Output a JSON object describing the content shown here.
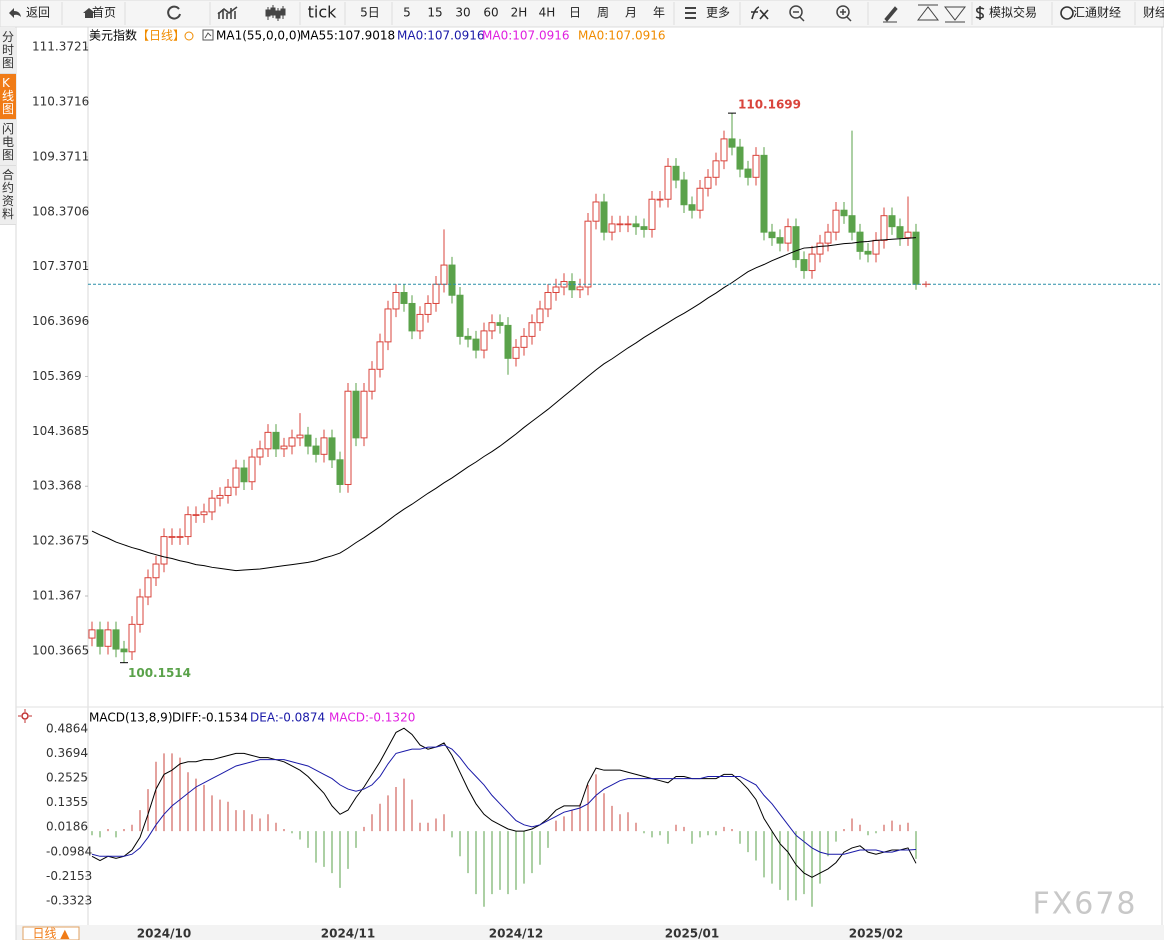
{
  "toolbar": [
    "返回",
    "首页",
    "tick",
    "5日",
    "5",
    "15",
    "30",
    "60",
    "2H",
    "4H",
    "日",
    "周",
    "月",
    "年",
    "更多",
    "模拟交易",
    "汇通财经",
    "财经"
  ],
  "sidebar": [
    "分时图",
    "K线图",
    "闪电图",
    "合约资料"
  ],
  "period_button": "日线 ▲",
  "watermark": "FX678",
  "chart_data": [
    {
      "type": "candlestick",
      "title": "美元指数",
      "period": "【日线】",
      "legend": [
        {
          "text": "MA1(55,0,0,0)",
          "color": "#000000"
        },
        {
          "text": "MA55:107.9018",
          "color": "#000000"
        },
        {
          "text": "MA0:107.0916",
          "color": "#1a1aa8"
        },
        {
          "text": "MA0:107.0916",
          "color": "#e020e0"
        },
        {
          "text": "MA0:107.0916",
          "color": "#f08c00"
        }
      ],
      "up_color": "#d9443c",
      "down_color": "#5aa24a",
      "categories": [
        null,
        null,
        null,
        null,
        null,
        null,
        null,
        null,
        null,
        "2024/10",
        null,
        null,
        null,
        null,
        null,
        null,
        null,
        null,
        null,
        null,
        null,
        null,
        null,
        null,
        null,
        null,
        null,
        null,
        null,
        null,
        null,
        null,
        "2024/11",
        null,
        null,
        null,
        null,
        null,
        null,
        null,
        null,
        null,
        null,
        null,
        null,
        null,
        null,
        null,
        null,
        null,
        null,
        null,
        null,
        "2024/12",
        null,
        null,
        null,
        null,
        null,
        null,
        null,
        null,
        null,
        null,
        null,
        null,
        null,
        null,
        null,
        null,
        null,
        null,
        null,
        null,
        null,
        "2025/01",
        null,
        null,
        null,
        null,
        null,
        null,
        null,
        null,
        null,
        null,
        null,
        null,
        null,
        null,
        null,
        null,
        null,
        null,
        null,
        null,
        null,
        null,
        "2025/02",
        null,
        null,
        null,
        null,
        null
      ],
      "open": [
        100.6,
        100.75,
        100.45,
        100.75,
        100.4,
        100.35,
        100.85,
        101.35,
        101.7,
        101.95,
        102.45,
        102.45,
        102.45,
        102.85,
        102.85,
        102.9,
        103.15,
        103.2,
        103.35,
        103.7,
        103.45,
        103.9,
        104.05,
        104.35,
        104.05,
        104.1,
        104.25,
        104.3,
        104.1,
        103.95,
        104.25,
        103.85,
        103.4,
        105.1,
        104.25,
        105.1,
        105.5,
        106.0,
        106.6,
        106.9,
        106.7,
        106.2,
        106.5,
        106.7,
        107.05,
        107.4,
        106.85,
        106.1,
        106.05,
        105.85,
        106.2,
        106.35,
        106.3,
        105.7,
        105.9,
        106.1,
        106.35,
        106.6,
        106.9,
        107.0,
        107.1,
        106.95,
        107.0,
        108.2,
        108.55,
        108.0,
        108.15,
        108.15,
        108.15,
        108.1,
        108.05,
        108.6,
        108.6,
        109.2,
        108.95,
        108.5,
        108.4,
        108.8,
        109.0,
        109.3,
        109.7,
        109.55,
        109.15,
        109.0,
        109.4,
        108.0,
        107.9,
        107.8,
        108.1,
        107.5,
        107.3,
        107.6,
        107.8,
        108.0,
        108.4,
        108.3,
        108.0,
        107.65,
        107.6,
        107.85,
        108.3,
        108.1,
        107.9,
        108.0
      ],
      "high": [
        100.9,
        100.9,
        100.9,
        100.9,
        100.55,
        101.0,
        101.5,
        101.85,
        102.1,
        102.6,
        102.6,
        102.6,
        103.0,
        103.0,
        103.05,
        103.3,
        103.35,
        103.5,
        103.85,
        103.85,
        104.05,
        104.2,
        104.5,
        104.5,
        104.25,
        104.4,
        104.7,
        104.45,
        104.25,
        104.4,
        104.4,
        104.0,
        105.25,
        105.25,
        105.25,
        105.65,
        106.15,
        106.75,
        107.05,
        107.05,
        106.85,
        106.65,
        106.85,
        107.2,
        108.05,
        107.55,
        107.0,
        106.25,
        106.2,
        106.35,
        106.5,
        106.5,
        106.45,
        106.05,
        106.25,
        106.5,
        106.75,
        107.05,
        107.15,
        107.25,
        107.25,
        107.15,
        108.35,
        108.7,
        108.7,
        108.3,
        108.3,
        108.3,
        108.3,
        108.25,
        108.75,
        108.75,
        109.35,
        109.35,
        109.1,
        108.65,
        108.95,
        109.15,
        109.45,
        109.85,
        110.1699,
        109.7,
        109.3,
        109.55,
        109.55,
        108.15,
        108.05,
        108.25,
        108.25,
        107.65,
        107.75,
        107.95,
        108.15,
        108.55,
        108.55,
        109.85,
        108.15,
        107.8,
        108.0,
        108.45,
        108.45,
        108.25,
        108.65,
        108.15
      ],
      "low": [
        100.45,
        100.3,
        100.3,
        100.25,
        100.1514,
        100.2,
        100.7,
        101.2,
        101.55,
        101.8,
        102.3,
        102.3,
        102.3,
        102.7,
        102.7,
        102.75,
        103.0,
        103.05,
        103.2,
        103.3,
        103.3,
        103.75,
        103.9,
        103.9,
        103.9,
        103.95,
        104.1,
        103.95,
        103.8,
        103.8,
        103.7,
        103.25,
        103.25,
        104.1,
        104.1,
        104.95,
        105.35,
        105.85,
        106.45,
        106.55,
        106.05,
        106.05,
        106.35,
        106.55,
        106.9,
        106.7,
        105.95,
        105.9,
        105.7,
        105.7,
        106.05,
        106.15,
        105.4,
        105.55,
        105.75,
        105.95,
        106.2,
        106.45,
        106.75,
        106.85,
        106.8,
        106.8,
        106.85,
        108.05,
        107.85,
        107.85,
        108.0,
        108.0,
        107.95,
        107.9,
        107.9,
        108.45,
        108.45,
        108.8,
        108.35,
        108.25,
        108.25,
        108.65,
        108.85,
        109.15,
        109.4,
        109.0,
        108.85,
        108.85,
        107.85,
        107.75,
        107.65,
        107.65,
        107.35,
        107.15,
        107.15,
        107.45,
        107.65,
        107.85,
        108.15,
        107.85,
        107.5,
        107.45,
        107.45,
        107.7,
        107.95,
        107.75,
        107.75,
        106.95
      ],
      "close": [
        100.75,
        100.45,
        100.75,
        100.4,
        100.35,
        100.85,
        101.35,
        101.7,
        101.95,
        102.45,
        102.45,
        102.45,
        102.85,
        102.85,
        102.9,
        103.15,
        103.2,
        103.35,
        103.7,
        103.45,
        103.9,
        104.05,
        104.35,
        104.05,
        104.1,
        104.25,
        104.3,
        104.1,
        103.95,
        104.25,
        103.85,
        103.4,
        105.1,
        104.25,
        105.1,
        105.5,
        106.0,
        106.6,
        106.9,
        106.7,
        106.2,
        106.5,
        106.7,
        107.05,
        107.4,
        106.85,
        106.1,
        106.05,
        105.85,
        106.2,
        106.35,
        106.3,
        105.7,
        105.9,
        106.1,
        106.35,
        106.6,
        106.9,
        107.0,
        107.1,
        106.95,
        107.0,
        108.2,
        108.55,
        108.0,
        108.15,
        108.15,
        108.15,
        108.1,
        108.05,
        108.6,
        108.6,
        109.2,
        108.95,
        108.5,
        108.4,
        108.8,
        109.0,
        109.3,
        109.7,
        109.55,
        109.15,
        109.0,
        109.4,
        108.0,
        107.9,
        107.8,
        108.1,
        107.5,
        107.3,
        107.6,
        107.8,
        108.0,
        108.4,
        108.3,
        108.0,
        107.65,
        107.6,
        107.85,
        108.3,
        108.1,
        107.9,
        108.0,
        107.05
      ],
      "ma55": {
        "color": "#000000",
        "values": [
          102.55,
          102.48,
          102.42,
          102.35,
          102.3,
          102.25,
          102.21,
          102.16,
          102.12,
          102.08,
          102.05,
          102.01,
          101.98,
          101.94,
          101.92,
          101.89,
          101.87,
          101.85,
          101.83,
          101.84,
          101.85,
          101.86,
          101.88,
          101.9,
          101.92,
          101.94,
          101.96,
          101.98,
          102.01,
          102.06,
          102.1,
          102.15,
          102.24,
          102.34,
          102.43,
          102.53,
          102.63,
          102.74,
          102.85,
          102.95,
          103.04,
          103.14,
          103.24,
          103.33,
          103.43,
          103.52,
          103.62,
          103.72,
          103.81,
          103.91,
          104.0,
          104.1,
          104.21,
          104.32,
          104.44,
          104.55,
          104.66,
          104.77,
          104.89,
          105.01,
          105.13,
          105.25,
          105.37,
          105.49,
          105.6,
          105.69,
          105.79,
          105.89,
          105.98,
          106.08,
          106.17,
          106.26,
          106.35,
          106.44,
          106.52,
          106.61,
          106.7,
          106.8,
          106.89,
          106.99,
          107.08,
          107.18,
          107.28,
          107.35,
          107.41,
          107.48,
          107.54,
          107.6,
          107.66,
          107.71,
          107.72,
          107.74,
          107.75,
          107.77,
          107.79,
          107.8,
          107.82,
          107.83,
          107.85,
          107.86,
          107.87,
          107.88,
          107.89,
          107.9
        ]
      },
      "ylim": [
        99.38,
        111.74
      ],
      "yticks": [
        100.3665,
        101.367,
        102.3675,
        103.368,
        104.3685,
        105.369,
        106.3696,
        107.3701,
        108.3706,
        109.3711,
        110.3716,
        111.3721
      ],
      "grid": false
    },
    {
      "type": "macd",
      "title": "MACD(13,8,9)",
      "legend": [
        {
          "text": "DIFF:-0.1534",
          "color": "#000000"
        },
        {
          "text": "DEA:-0.0874",
          "color": "#1a1aa8"
        },
        {
          "text": "MACD:-0.1320",
          "color": "#e020e0"
        }
      ],
      "up_color": "#c8453c",
      "down_color": "#5aa24a",
      "histogram": [
        -0.02,
        -0.03,
        0.01,
        -0.03,
        0.01,
        0.03,
        0.1,
        0.2,
        0.33,
        0.37,
        0.37,
        0.35,
        0.28,
        0.25,
        0.22,
        0.17,
        0.15,
        0.14,
        0.1,
        0.1,
        0.08,
        0.06,
        0.08,
        0.04,
        0.01,
        -0.01,
        -0.04,
        -0.08,
        -0.15,
        -0.17,
        -0.2,
        -0.27,
        -0.18,
        -0.08,
        0.02,
        0.08,
        0.13,
        0.17,
        0.21,
        0.25,
        0.15,
        0.04,
        0.04,
        0.06,
        0.08,
        -0.03,
        -0.12,
        -0.2,
        -0.3,
        -0.36,
        -0.3,
        -0.28,
        -0.3,
        -0.28,
        -0.25,
        -0.2,
        -0.16,
        -0.08,
        0.05,
        0.07,
        0.1,
        0.13,
        0.22,
        0.27,
        0.18,
        0.12,
        0.08,
        0.09,
        0.04,
        -0.01,
        -0.03,
        -0.02,
        -0.06,
        0.03,
        0.02,
        -0.06,
        -0.03,
        -0.02,
        -0.02,
        0.02,
        0.01,
        -0.06,
        -0.1,
        -0.14,
        -0.22,
        -0.25,
        -0.28,
        -0.33,
        -0.33,
        -0.3,
        -0.36,
        -0.25,
        -0.12,
        -0.05,
        0.01,
        0.06,
        0.03,
        -0.02,
        -0.01,
        0.03,
        0.05,
        0.03,
        0.04,
        -0.132
      ],
      "series": [
        {
          "color": "#000000",
          "values": [
            -0.12,
            -0.14,
            -0.12,
            -0.13,
            -0.12,
            -0.09,
            -0.03,
            0.08,
            0.2,
            0.27,
            0.29,
            0.32,
            0.33,
            0.33,
            0.34,
            0.34,
            0.35,
            0.36,
            0.37,
            0.37,
            0.36,
            0.35,
            0.35,
            0.34,
            0.33,
            0.31,
            0.29,
            0.26,
            0.22,
            0.18,
            0.12,
            0.08,
            0.1,
            0.16,
            0.21,
            0.27,
            0.33,
            0.4,
            0.47,
            0.49,
            0.46,
            0.41,
            0.39,
            0.4,
            0.42,
            0.36,
            0.28,
            0.2,
            0.13,
            0.08,
            0.05,
            0.03,
            0.01,
            0.0,
            0.0,
            0.01,
            0.03,
            0.06,
            0.1,
            0.12,
            0.12,
            0.12,
            0.23,
            0.3,
            0.29,
            0.29,
            0.29,
            0.28,
            0.27,
            0.26,
            0.25,
            0.24,
            0.23,
            0.26,
            0.26,
            0.25,
            0.25,
            0.25,
            0.25,
            0.27,
            0.27,
            0.24,
            0.2,
            0.15,
            0.06,
            0.0,
            -0.06,
            -0.1,
            -0.16,
            -0.2,
            -0.22,
            -0.2,
            -0.18,
            -0.15,
            -0.1,
            -0.08,
            -0.07,
            -0.1,
            -0.11,
            -0.1,
            -0.09,
            -0.09,
            -0.08,
            -0.1534
          ]
        },
        {
          "color": "#1a1aa8",
          "values": [
            -0.11,
            -0.12,
            -0.12,
            -0.12,
            -0.12,
            -0.11,
            -0.08,
            -0.03,
            0.03,
            0.08,
            0.12,
            0.15,
            0.18,
            0.21,
            0.23,
            0.25,
            0.27,
            0.29,
            0.31,
            0.32,
            0.33,
            0.34,
            0.34,
            0.34,
            0.34,
            0.33,
            0.32,
            0.31,
            0.29,
            0.27,
            0.25,
            0.22,
            0.2,
            0.19,
            0.2,
            0.22,
            0.26,
            0.32,
            0.37,
            0.38,
            0.39,
            0.39,
            0.4,
            0.4,
            0.41,
            0.39,
            0.35,
            0.3,
            0.26,
            0.22,
            0.17,
            0.13,
            0.09,
            0.05,
            0.03,
            0.02,
            0.03,
            0.05,
            0.07,
            0.09,
            0.1,
            0.11,
            0.13,
            0.17,
            0.2,
            0.22,
            0.24,
            0.25,
            0.25,
            0.25,
            0.25,
            0.25,
            0.25,
            0.25,
            0.25,
            0.25,
            0.25,
            0.26,
            0.26,
            0.26,
            0.26,
            0.26,
            0.24,
            0.22,
            0.17,
            0.13,
            0.08,
            0.03,
            -0.02,
            -0.05,
            -0.08,
            -0.1,
            -0.11,
            -0.11,
            -0.11,
            -0.1,
            -0.09,
            -0.09,
            -0.09,
            -0.1,
            -0.1,
            -0.09,
            -0.09,
            -0.0874
          ]
        }
      ],
      "ylim": [
        -0.447,
        0.567
      ],
      "yticks": [
        0.4864,
        0.3694,
        0.2525,
        0.1355,
        0.0186,
        -0.0984,
        -0.2153,
        -0.3323
      ],
      "grid": false
    }
  ]
}
